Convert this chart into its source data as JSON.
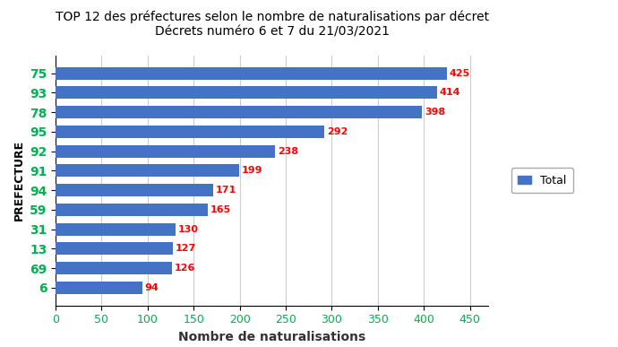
{
  "title_line1": "TOP 12 des préfectures selon le nombre de naturalisations par décret",
  "title_line2": "Décrets numéro 6 et 7 du 21/03/2021",
  "categories": [
    "75",
    "93",
    "78",
    "95",
    "92",
    "91",
    "94",
    "59",
    "31",
    "13",
    "69",
    "6"
  ],
  "values": [
    425,
    414,
    398,
    292,
    238,
    199,
    171,
    165,
    130,
    127,
    126,
    94
  ],
  "bar_color": "#4472C4",
  "label_color_red": "#FF0000",
  "label_color_green": "#00B050",
  "ylabel": "PREFECTURE",
  "xlabel": "Nombre de naturalisations",
  "xlim": [
    0,
    470
  ],
  "xticks": [
    0,
    50,
    100,
    150,
    200,
    250,
    300,
    350,
    400,
    450
  ],
  "legend_label": "Total",
  "legend_color": "#4472C4",
  "bg_color": "#FFFFFF",
  "grid_color": "#CCCCCC",
  "title_fontsize": 10,
  "axis_label_fontsize": 9,
  "tick_fontsize": 9,
  "value_fontsize": 8,
  "ytick_fontsize": 10,
  "xlabel_fontsize": 10
}
